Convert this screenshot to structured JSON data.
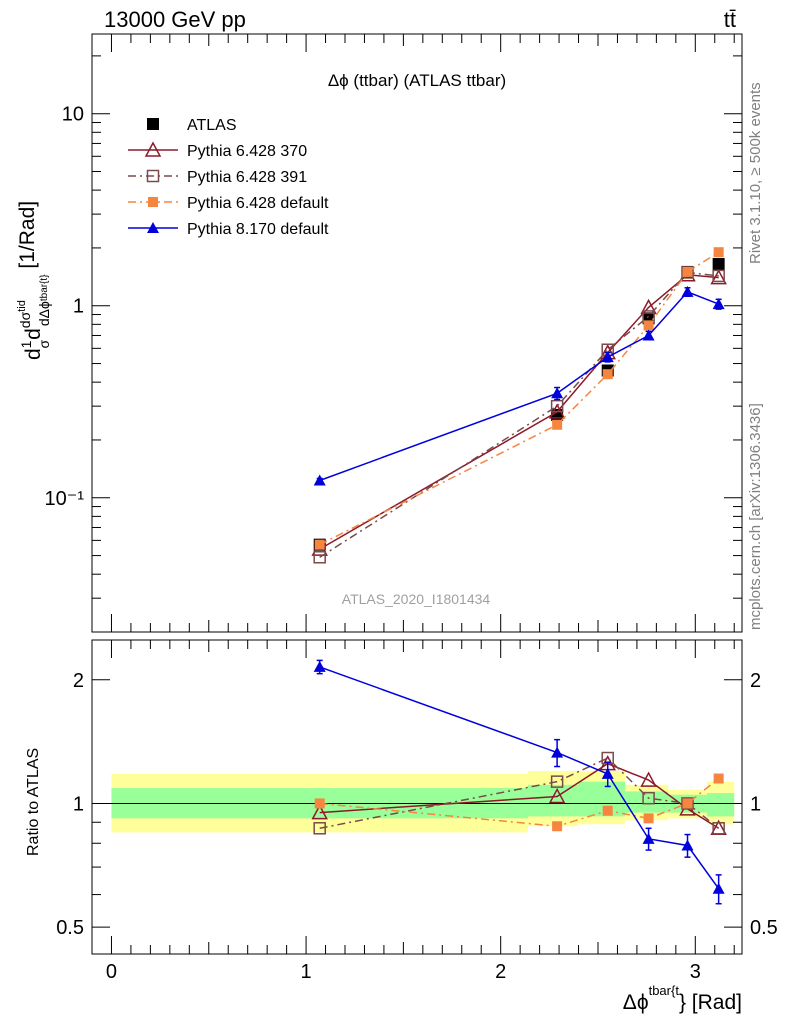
{
  "header": {
    "left": "13000 GeV pp",
    "right": "tt̄"
  },
  "side_text": {
    "rivet": "Rivet 3.1.10, ≥ 500k events",
    "mcplots": "mcplots.cern.ch [arXiv:1306.3436]"
  },
  "watermark": "ATLAS_2020_I1801434",
  "chart_data": [
    {
      "type": "line",
      "title": "Δϕ (ttbar) (ATLAS ttbar)",
      "ylabel": "d1/σ dσ^{tid} / dΔϕ^{tbar{t}} [1/Rad]",
      "xlabel": "",
      "yscale": "log",
      "ylim": [
        0.02,
        26
      ],
      "xlim": [
        -0.1,
        3.24
      ],
      "y_ticks": [
        "10⁻¹",
        "1",
        "10"
      ],
      "legend_position": "top-left",
      "series": [
        {
          "name": "ATLAS",
          "color": "#000000",
          "marker": "filled-square",
          "line": "none",
          "x": [
            1.07,
            2.29,
            2.55,
            2.76,
            2.96,
            3.12
          ],
          "y": [
            0.057,
            0.27,
            0.46,
            0.86,
            1.5,
            1.65
          ],
          "yerr": [
            0.003,
            0.015,
            0.02,
            0.03,
            0.05,
            0.06
          ]
        },
        {
          "name": "Pythia 6.428 370",
          "color": "#8b1a2b",
          "marker": "open-triangle",
          "line": "solid",
          "x": [
            1.07,
            2.29,
            2.55,
            2.76,
            2.96,
            3.12
          ],
          "y": [
            0.054,
            0.28,
            0.57,
            0.98,
            1.45,
            1.4
          ]
        },
        {
          "name": "Pythia 6.428 391",
          "color": "#7a4a4a",
          "marker": "open-square",
          "line": "dashdot",
          "x": [
            1.07,
            2.29,
            2.55,
            2.76,
            2.96,
            3.12
          ],
          "y": [
            0.049,
            0.3,
            0.59,
            0.88,
            1.49,
            1.43
          ]
        },
        {
          "name": "Pythia 6.428 default",
          "color": "#f5853f",
          "marker": "filled-square-small",
          "line": "dashdot",
          "x": [
            1.07,
            2.29,
            2.55,
            2.76,
            2.96,
            3.12
          ],
          "y": [
            0.057,
            0.24,
            0.44,
            0.79,
            1.5,
            1.9
          ]
        },
        {
          "name": "Pythia 8.170 default",
          "color": "#0000dd",
          "marker": "filled-triangle",
          "line": "solid",
          "x": [
            1.07,
            2.29,
            2.55,
            2.76,
            2.96,
            3.12
          ],
          "y": [
            0.123,
            0.35,
            0.54,
            0.7,
            1.18,
            1.02
          ],
          "yerr": [
            0.003,
            0.025,
            0.03,
            0.035,
            0.06,
            0.06
          ]
        }
      ]
    },
    {
      "type": "line",
      "title": "",
      "xlabel": "Δϕ^{tbar{t}} [Rad]",
      "ylabel": "Ratio to ATLAS",
      "yscale": "log",
      "ylim": [
        0.43,
        2.5
      ],
      "xlim": [
        -0.1,
        3.24
      ],
      "x_ticks": [
        "0",
        "1",
        "2",
        "3"
      ],
      "y_ticks": [
        "0.5",
        "1",
        "2"
      ],
      "uncertainty_bands": [
        {
          "x0": 0.0,
          "x1": 2.14,
          "inner": [
            0.92,
            1.09
          ],
          "outer": [
            0.85,
            1.18
          ]
        },
        {
          "x0": 2.14,
          "x1": 2.4,
          "inner": [
            0.93,
            1.11
          ],
          "outer": [
            0.88,
            1.2
          ]
        },
        {
          "x0": 2.4,
          "x1": 2.64,
          "inner": [
            0.93,
            1.13
          ],
          "outer": [
            0.89,
            1.2
          ]
        },
        {
          "x0": 2.64,
          "x1": 2.86,
          "inner": [
            0.95,
            1.07
          ],
          "outer": [
            0.91,
            1.11
          ]
        },
        {
          "x0": 2.86,
          "x1": 3.06,
          "inner": [
            0.95,
            1.05
          ],
          "outer": [
            0.92,
            1.08
          ]
        },
        {
          "x0": 3.06,
          "x1": 3.2,
          "inner": [
            0.93,
            1.06
          ],
          "outer": [
            0.89,
            1.13
          ]
        }
      ],
      "series": [
        {
          "name": "Pythia 6.428 370",
          "color": "#8b1a2b",
          "marker": "open-triangle",
          "line": "solid",
          "x": [
            1.07,
            2.29,
            2.55,
            2.76,
            2.96,
            3.12
          ],
          "y": [
            0.95,
            1.04,
            1.25,
            1.14,
            0.97,
            0.87
          ]
        },
        {
          "name": "Pythia 6.428 391",
          "color": "#7a4a4a",
          "marker": "open-square",
          "line": "dashdot",
          "x": [
            1.07,
            2.29,
            2.55,
            2.76,
            2.96,
            3.12
          ],
          "y": [
            0.87,
            1.13,
            1.29,
            1.03,
            1.0,
            0.87
          ]
        },
        {
          "name": "Pythia 6.428 default",
          "color": "#f5853f",
          "marker": "filled-square-small",
          "line": "dashdot",
          "x": [
            1.07,
            2.29,
            2.55,
            2.76,
            2.96,
            3.12
          ],
          "y": [
            1.0,
            0.88,
            0.96,
            0.92,
            1.0,
            1.15
          ]
        },
        {
          "name": "Pythia 8.170 default",
          "color": "#0000dd",
          "marker": "filled-triangle",
          "line": "solid",
          "x": [
            1.07,
            2.29,
            2.55,
            2.76,
            2.96,
            3.12
          ],
          "y": [
            2.15,
            1.33,
            1.18,
            0.82,
            0.79,
            0.62
          ],
          "yerr": [
            0.08,
            0.1,
            0.08,
            0.05,
            0.05,
            0.05
          ]
        }
      ]
    }
  ]
}
